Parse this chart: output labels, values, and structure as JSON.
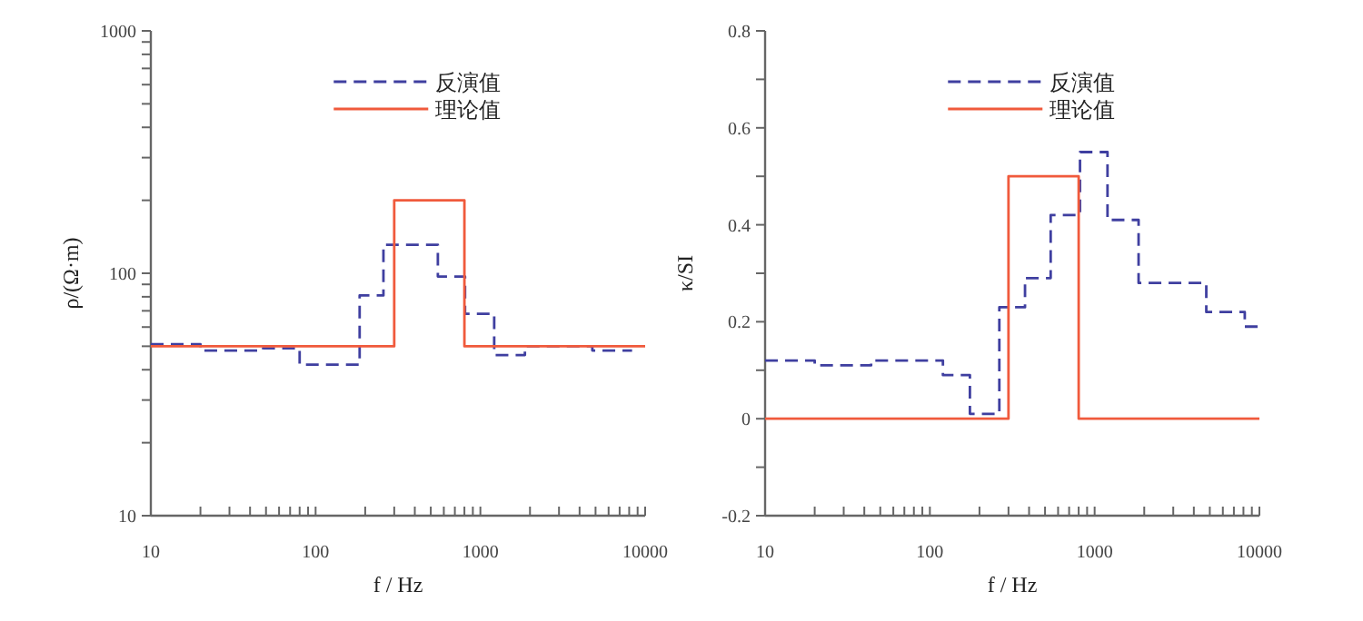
{
  "chart_data": [
    {
      "type": "step",
      "xlabel": "f / Hz",
      "ylabel": "ρ/(Ω·m)",
      "log": "xy",
      "xlim": [
        10,
        10000
      ],
      "ylim": [
        10,
        1000
      ],
      "xticks": [
        10,
        {
          "value": 20,
          "label": null
        },
        {
          "value": 30,
          "label": null
        },
        {
          "value": 40,
          "label": null
        },
        {
          "value": 50,
          "label": null
        },
        {
          "value": 60,
          "label": null
        },
        {
          "value": 70,
          "label": null
        },
        {
          "value": 80,
          "label": null
        },
        {
          "value": 90,
          "label": null
        },
        100,
        {
          "value": 200,
          "label": null
        },
        {
          "value": 300,
          "label": null
        },
        {
          "value": 400,
          "label": null
        },
        {
          "value": 500,
          "label": null
        },
        {
          "value": 600,
          "label": null
        },
        {
          "value": 700,
          "label": null
        },
        {
          "value": 800,
          "label": null
        },
        {
          "value": 900,
          "label": null
        },
        1000,
        {
          "value": 2000,
          "label": null
        },
        {
          "value": 3000,
          "label": null
        },
        {
          "value": 4000,
          "label": null
        },
        {
          "value": 5000,
          "label": null
        },
        {
          "value": 6000,
          "label": null
        },
        {
          "value": 7000,
          "label": null
        },
        {
          "value": 8000,
          "label": null
        },
        {
          "value": 9000,
          "label": null
        },
        10000
      ],
      "yticks": [
        10,
        {
          "value": 20,
          "label": null
        },
        {
          "value": 30,
          "label": null
        },
        {
          "value": 40,
          "label": null
        },
        {
          "value": 50,
          "label": null
        },
        {
          "value": 60,
          "label": null
        },
        {
          "value": 70,
          "label": null
        },
        {
          "value": 80,
          "label": null
        },
        {
          "value": 90,
          "label": null
        },
        100,
        {
          "value": 200,
          "label": null
        },
        {
          "value": 300,
          "label": null
        },
        {
          "value": 400,
          "label": null
        },
        {
          "value": 500,
          "label": null
        },
        {
          "value": 600,
          "label": null
        },
        {
          "value": 700,
          "label": null
        },
        {
          "value": 800,
          "label": null
        },
        {
          "value": 900,
          "label": null
        },
        1000
      ],
      "legend": "top",
      "series": [
        {
          "name": "反演值",
          "color": "#3f3fa0",
          "line_style": "dashed",
          "x": [
            10,
            20,
            48,
            80,
            185,
            258,
            552,
            807,
            1213,
            1863,
            4780,
            8330
          ],
          "values": [
            51,
            48,
            49,
            42,
            81,
            131,
            97,
            68,
            46,
            50,
            48,
            48
          ]
        },
        {
          "name": "理论值",
          "color": "#f05a3c",
          "line_style": "solid",
          "x": [
            10,
            300,
            800,
            10000
          ],
          "values": [
            50,
            200,
            50,
            50
          ]
        }
      ]
    },
    {
      "type": "step",
      "xlabel": "f / Hz",
      "ylabel": "κ/SI",
      "log": "x",
      "xlim": [
        10,
        10000
      ],
      "ylim": [
        -0.2,
        0.8
      ],
      "xticks": [
        10,
        {
          "value": 20,
          "label": null
        },
        {
          "value": 30,
          "label": null
        },
        {
          "value": 40,
          "label": null
        },
        {
          "value": 50,
          "label": null
        },
        {
          "value": 60,
          "label": null
        },
        {
          "value": 70,
          "label": null
        },
        {
          "value": 80,
          "label": null
        },
        {
          "value": 90,
          "label": null
        },
        100,
        {
          "value": 200,
          "label": null
        },
        {
          "value": 300,
          "label": null
        },
        {
          "value": 400,
          "label": null
        },
        {
          "value": 500,
          "label": null
        },
        {
          "value": 600,
          "label": null
        },
        {
          "value": 700,
          "label": null
        },
        {
          "value": 800,
          "label": null
        },
        {
          "value": 900,
          "label": null
        },
        1000,
        {
          "value": 2000,
          "label": null
        },
        {
          "value": 3000,
          "label": null
        },
        {
          "value": 4000,
          "label": null
        },
        {
          "value": 5000,
          "label": null
        },
        {
          "value": 6000,
          "label": null
        },
        {
          "value": 7000,
          "label": null
        },
        {
          "value": 8000,
          "label": null
        },
        {
          "value": 9000,
          "label": null
        },
        10000
      ],
      "yticks": [
        -0.2,
        {
          "value": -0.1,
          "label": null
        },
        0,
        {
          "value": 0.1,
          "label": null
        },
        0.2,
        {
          "value": 0.3,
          "label": null
        },
        0.4,
        {
          "value": 0.5,
          "label": null
        },
        0.6,
        {
          "value": 0.7,
          "label": null
        },
        0.8
      ],
      "legend": "top",
      "series": [
        {
          "name": "反演值",
          "color": "#3f3fa0",
          "line_style": "dashed",
          "x": [
            10,
            20,
            44,
            120,
            175,
            264,
            378,
            541,
            815,
            1197,
            1848,
            4760,
            8150,
            10000
          ],
          "values": [
            0.12,
            0.11,
            0.12,
            0.09,
            0.01,
            0.23,
            0.29,
            0.42,
            0.55,
            0.41,
            0.28,
            0.22,
            0.19,
            0.19
          ]
        },
        {
          "name": "理论值",
          "color": "#f05a3c",
          "line_style": "solid",
          "x": [
            10,
            300,
            800,
            10000
          ],
          "values": [
            0,
            0.5,
            0,
            0
          ]
        }
      ]
    }
  ]
}
